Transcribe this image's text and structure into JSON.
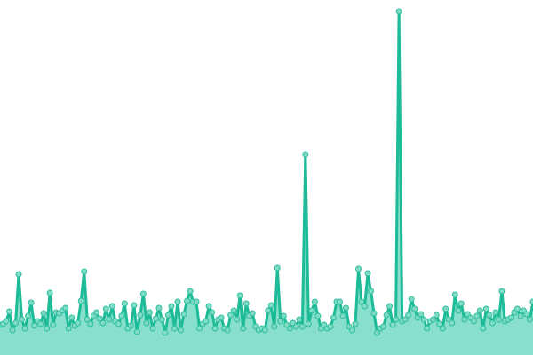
{
  "chart_data": {
    "type": "area",
    "title": "",
    "xlabel": "",
    "ylabel": "",
    "ylim": [
      0,
      400
    ],
    "grid": false,
    "legend": "none",
    "axes_visible": false,
    "markers": true,
    "colors": {
      "line": "#1dbb97",
      "fill": "#87dfcc",
      "marker_fill": "#7fdbc6",
      "marker_stroke": "#2cbf9c"
    },
    "series": [
      {
        "values": [
          34,
          35,
          38,
          49,
          28,
          36,
          91,
          40,
          30,
          44,
          59,
          33,
          38,
          35,
          47,
          30,
          70,
          34,
          48,
          47,
          50,
          53,
          30,
          42,
          33,
          36,
          61,
          94,
          40,
          35,
          44,
          48,
          41,
          36,
          52,
          40,
          55,
          38,
          35,
          44,
          58,
          30,
          33,
          56,
          26,
          45,
          69,
          36,
          48,
          30,
          41,
          53,
          40,
          25,
          45,
          55,
          30,
          60,
          28,
          46,
          61,
          72,
          60,
          60,
          30,
          35,
          38,
          55,
          48,
          30,
          40,
          42,
          30,
          28,
          45,
          50,
          40,
          67,
          30,
          58,
          44,
          47,
          32,
          28,
          30,
          28,
          50,
          56,
          32,
          98,
          38,
          44,
          34,
          30,
          36,
          32,
          40,
          32,
          226,
          35,
          50,
          60,
          44,
          30,
          34,
          30,
          32,
          42,
          60,
          60,
          44,
          53,
          32,
          28,
          35,
          97,
          60,
          55,
          92,
          72,
          47,
          25,
          30,
          32,
          45,
          55,
          34,
          40,
          387,
          38,
          40,
          45,
          63,
          52,
          42,
          46,
          40,
          30,
          38,
          40,
          45,
          35,
          30,
          52,
          40,
          36,
          68,
          50,
          58,
          40,
          46,
          42,
          38,
          44,
          50,
          30,
          52,
          45,
          36,
          48,
          40,
          72,
          38,
          40,
          42,
          48,
          52,
          44,
          50,
          46,
          40,
          60
        ]
      }
    ]
  }
}
